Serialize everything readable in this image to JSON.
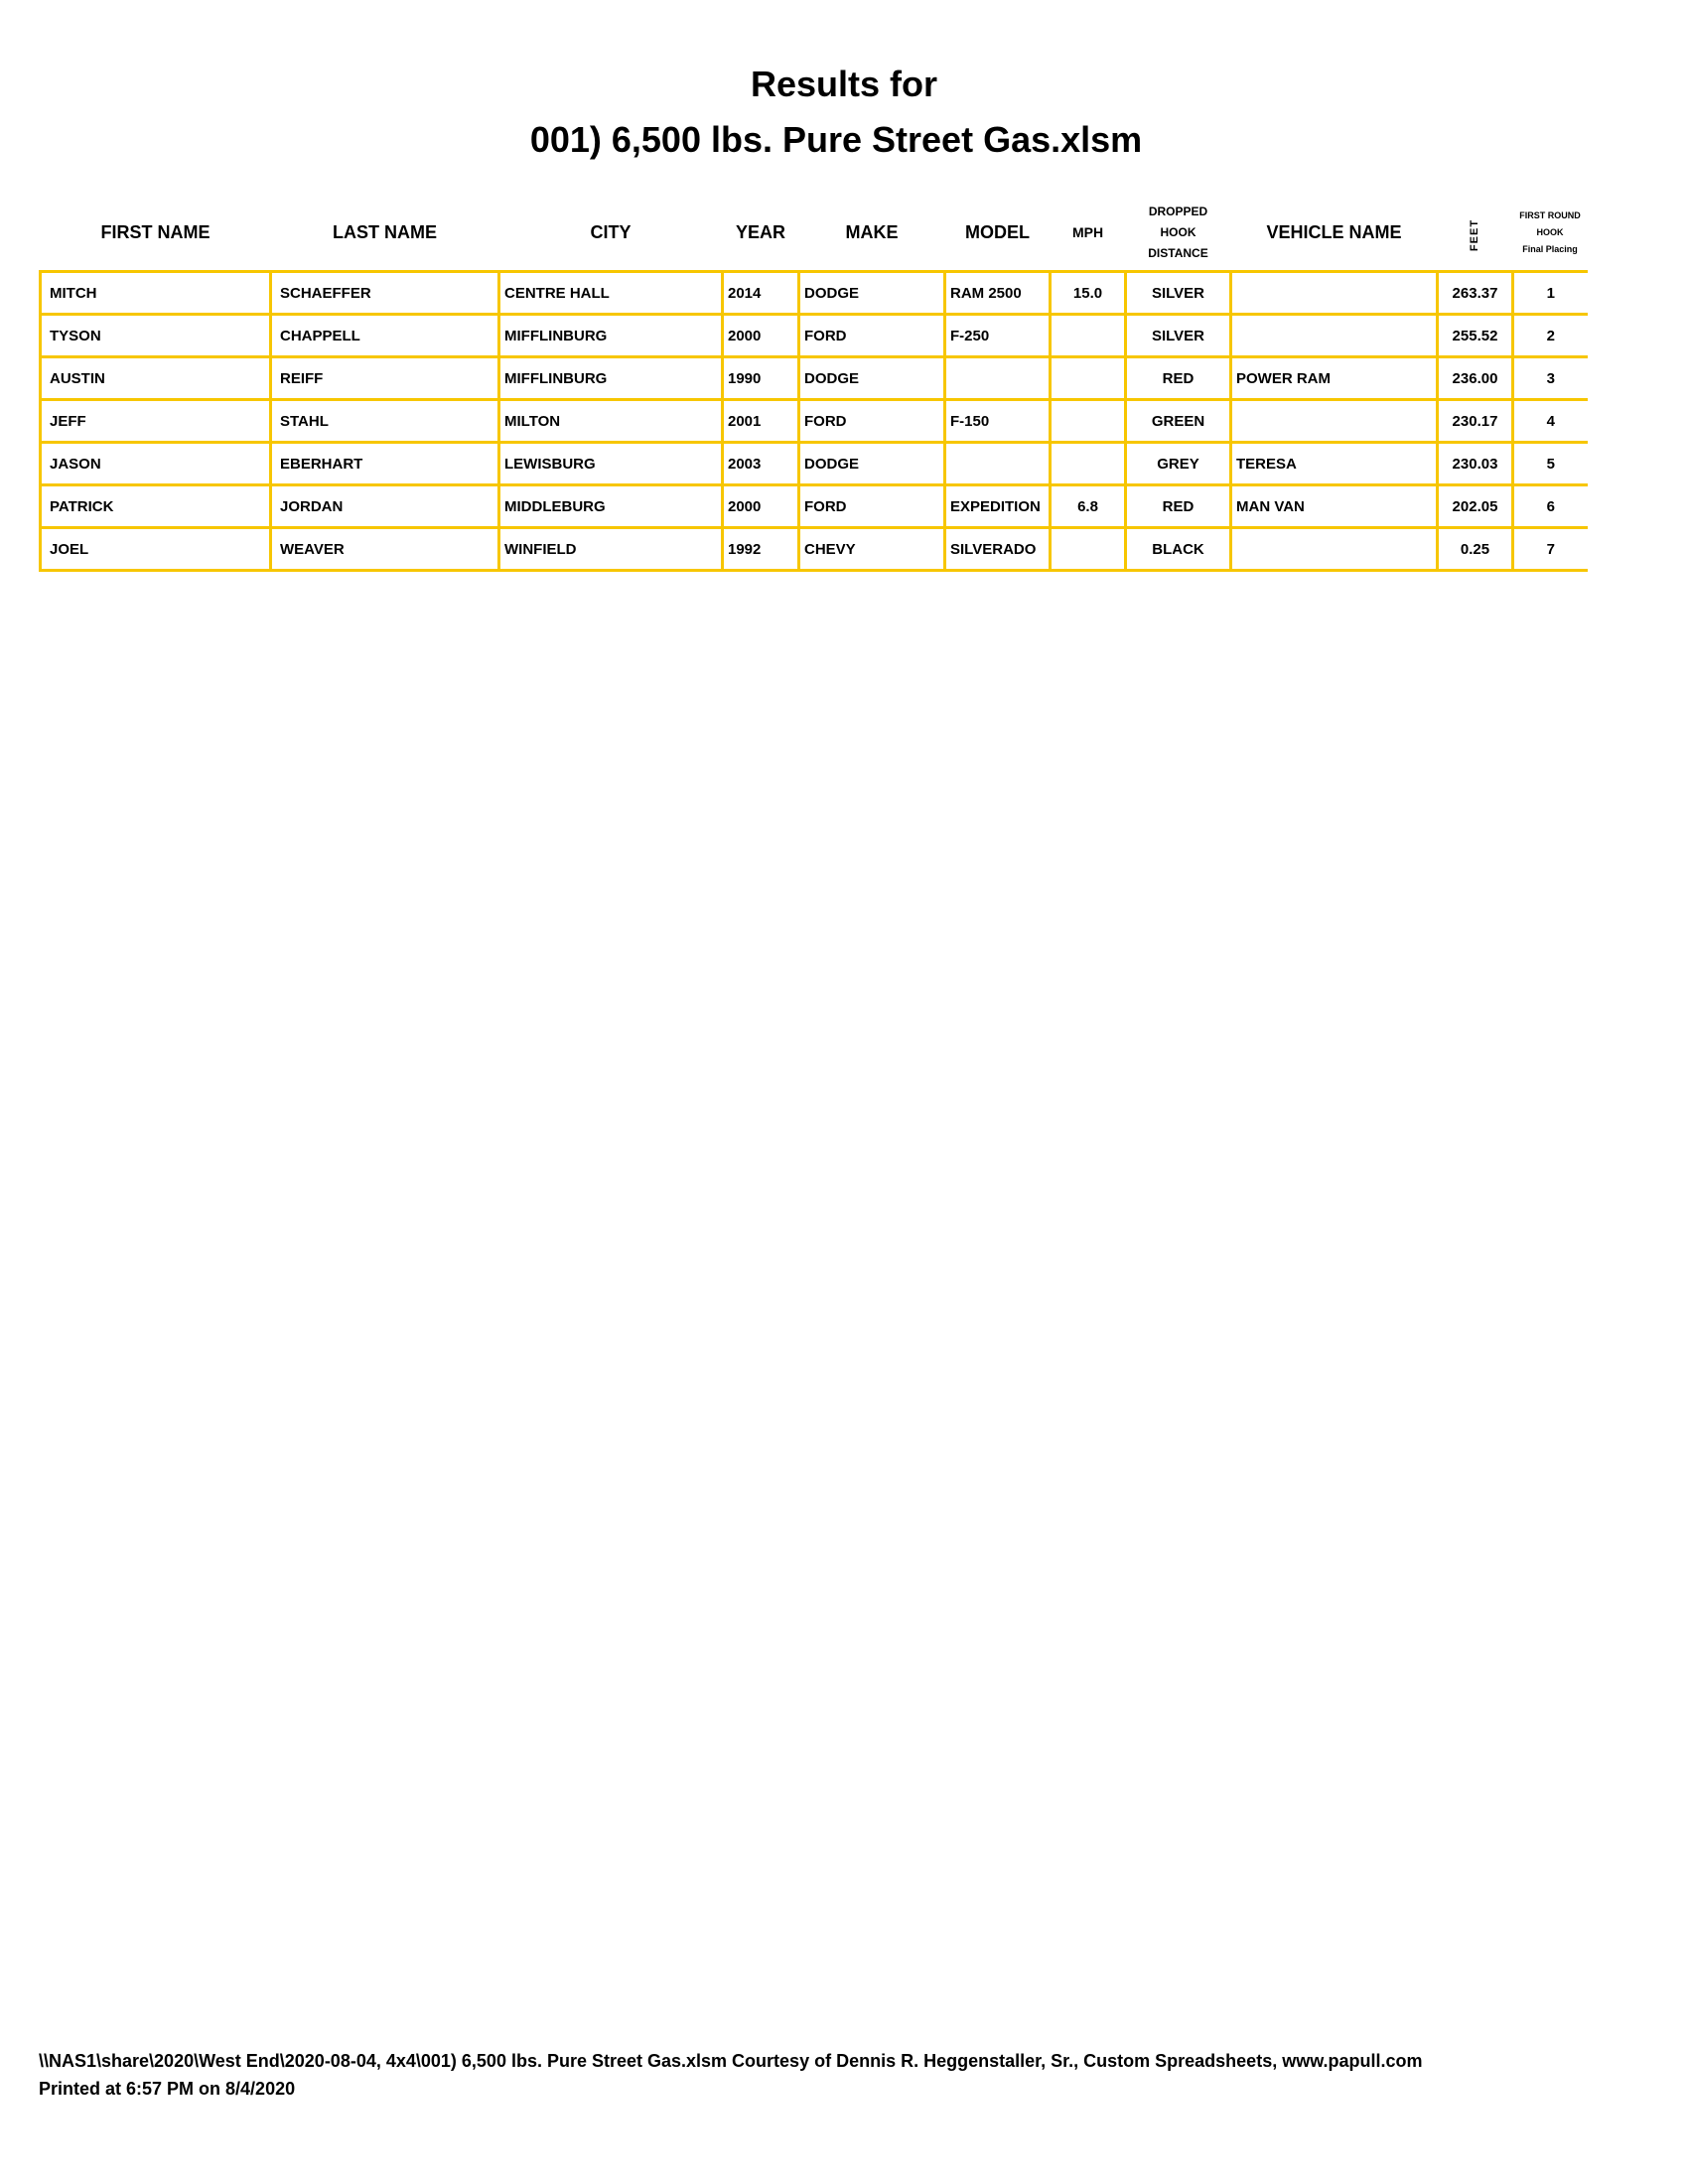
{
  "title": {
    "line1": "Results for",
    "line2": "001) 6,500 lbs. Pure Street Gas.xlsm"
  },
  "columns": {
    "first_name": "FIRST NAME",
    "last_name": "LAST NAME",
    "city": "CITY",
    "year": "YEAR",
    "make": "MAKE",
    "model": "MODEL",
    "mph": "MPH",
    "dropped_hook": [
      "DROPPED",
      "HOOK",
      "DISTANCE"
    ],
    "vehicle_name": "VEHICLE NAME",
    "feet": "FEET",
    "placing": [
      "FIRST ROUND",
      "HOOK",
      "Final Placing"
    ]
  },
  "rows": [
    {
      "first": "MITCH",
      "last": "SCHAEFFER",
      "city": "CENTRE HALL",
      "year": "2014",
      "make": "DODGE",
      "model": "RAM 2500",
      "mph": "15.0",
      "color": "SILVER",
      "vehicle": "",
      "feet": "263.37",
      "place": "1"
    },
    {
      "first": "TYSON",
      "last": "CHAPPELL",
      "city": "MIFFLINBURG",
      "year": "2000",
      "make": "FORD",
      "model": "F-250",
      "mph": "",
      "color": "SILVER",
      "vehicle": "",
      "feet": "255.52",
      "place": "2"
    },
    {
      "first": "AUSTIN",
      "last": "REIFF",
      "city": "MIFFLINBURG",
      "year": "1990",
      "make": "DODGE",
      "model": "",
      "mph": "",
      "color": "RED",
      "vehicle": "POWER RAM",
      "feet": "236.00",
      "place": "3"
    },
    {
      "first": "JEFF",
      "last": "STAHL",
      "city": "MILTON",
      "year": "2001",
      "make": "FORD",
      "model": "F-150",
      "mph": "",
      "color": "GREEN",
      "vehicle": "",
      "feet": "230.17",
      "place": "4"
    },
    {
      "first": "JASON",
      "last": "EBERHART",
      "city": "LEWISBURG",
      "year": "2003",
      "make": "DODGE",
      "model": "",
      "mph": "",
      "color": "GREY",
      "vehicle": "TERESA",
      "feet": "230.03",
      "place": "5"
    },
    {
      "first": "PATRICK",
      "last": "JORDAN",
      "city": "MIDDLEBURG",
      "year": "2000",
      "make": "FORD",
      "model": "EXPEDITION",
      "mph": "6.8",
      "color": "RED",
      "vehicle": "MAN VAN",
      "feet": "202.05",
      "place": "6"
    },
    {
      "first": "JOEL",
      "last": "WEAVER",
      "city": "WINFIELD",
      "year": "1992",
      "make": "CHEVY",
      "model": "SILVERADO",
      "mph": "",
      "color": "BLACK",
      "vehicle": "",
      "feet": "0.25",
      "place": "7"
    }
  ],
  "footer": {
    "path_line": "\\\\NAS1\\share\\2020\\West End\\2020-08-04, 4x4\\001) 6,500 lbs. Pure Street Gas.xlsm  Courtesy of Dennis R. Heggenstaller, Sr., Custom Spreadsheets, www.papull.com",
    "printed": "Printed at 6:57 PM on 8/4/2020"
  },
  "colors": {
    "grid": "#f7c600"
  }
}
